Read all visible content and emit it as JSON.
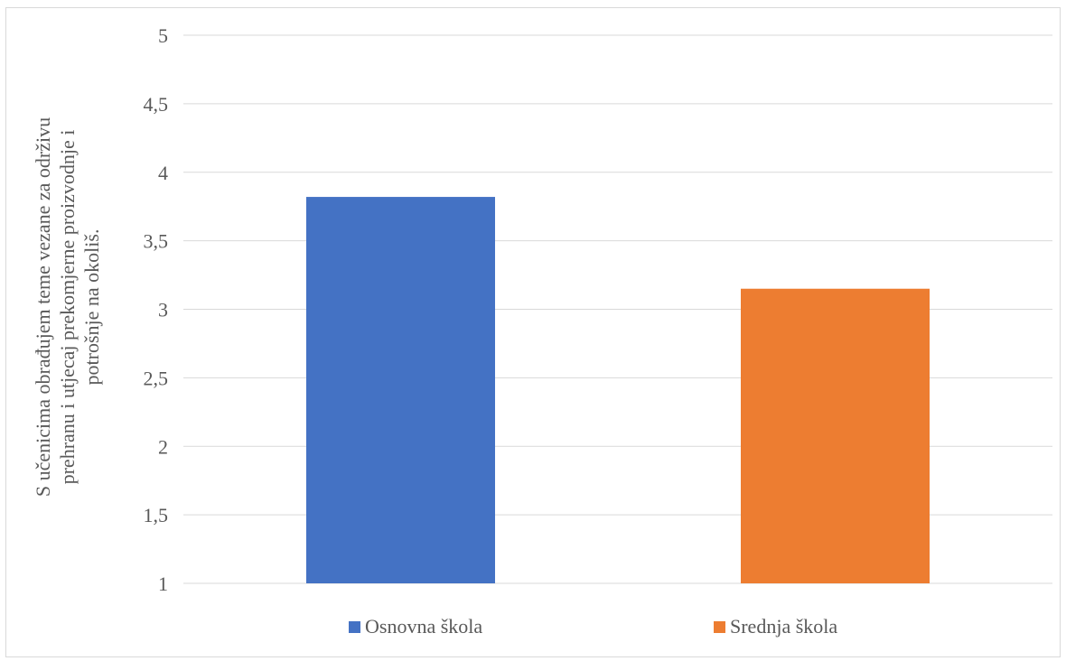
{
  "chart_data": {
    "type": "bar",
    "title": "",
    "xlabel": "",
    "ylabel_lines": [
      "S učenicima obrađujem teme vezane za održivu",
      "prehranu i utjecaj prekomjerne proizvodnje i",
      "potrošnje na okoliš."
    ],
    "ylim": [
      1,
      5
    ],
    "yticks": [
      1,
      1.5,
      2,
      2.5,
      3,
      3.5,
      4,
      4.5,
      5
    ],
    "ytick_labels": [
      "1",
      "1,5",
      "2",
      "2,5",
      "3",
      "3,5",
      "4",
      "4,5",
      "5"
    ],
    "grid": true,
    "legend_position": "bottom",
    "series": [
      {
        "name": "Osnovna škola",
        "value": 3.82,
        "color": "#4472C4"
      },
      {
        "name": "Srednja škola",
        "value": 3.15,
        "color": "#ED7D31"
      }
    ]
  }
}
